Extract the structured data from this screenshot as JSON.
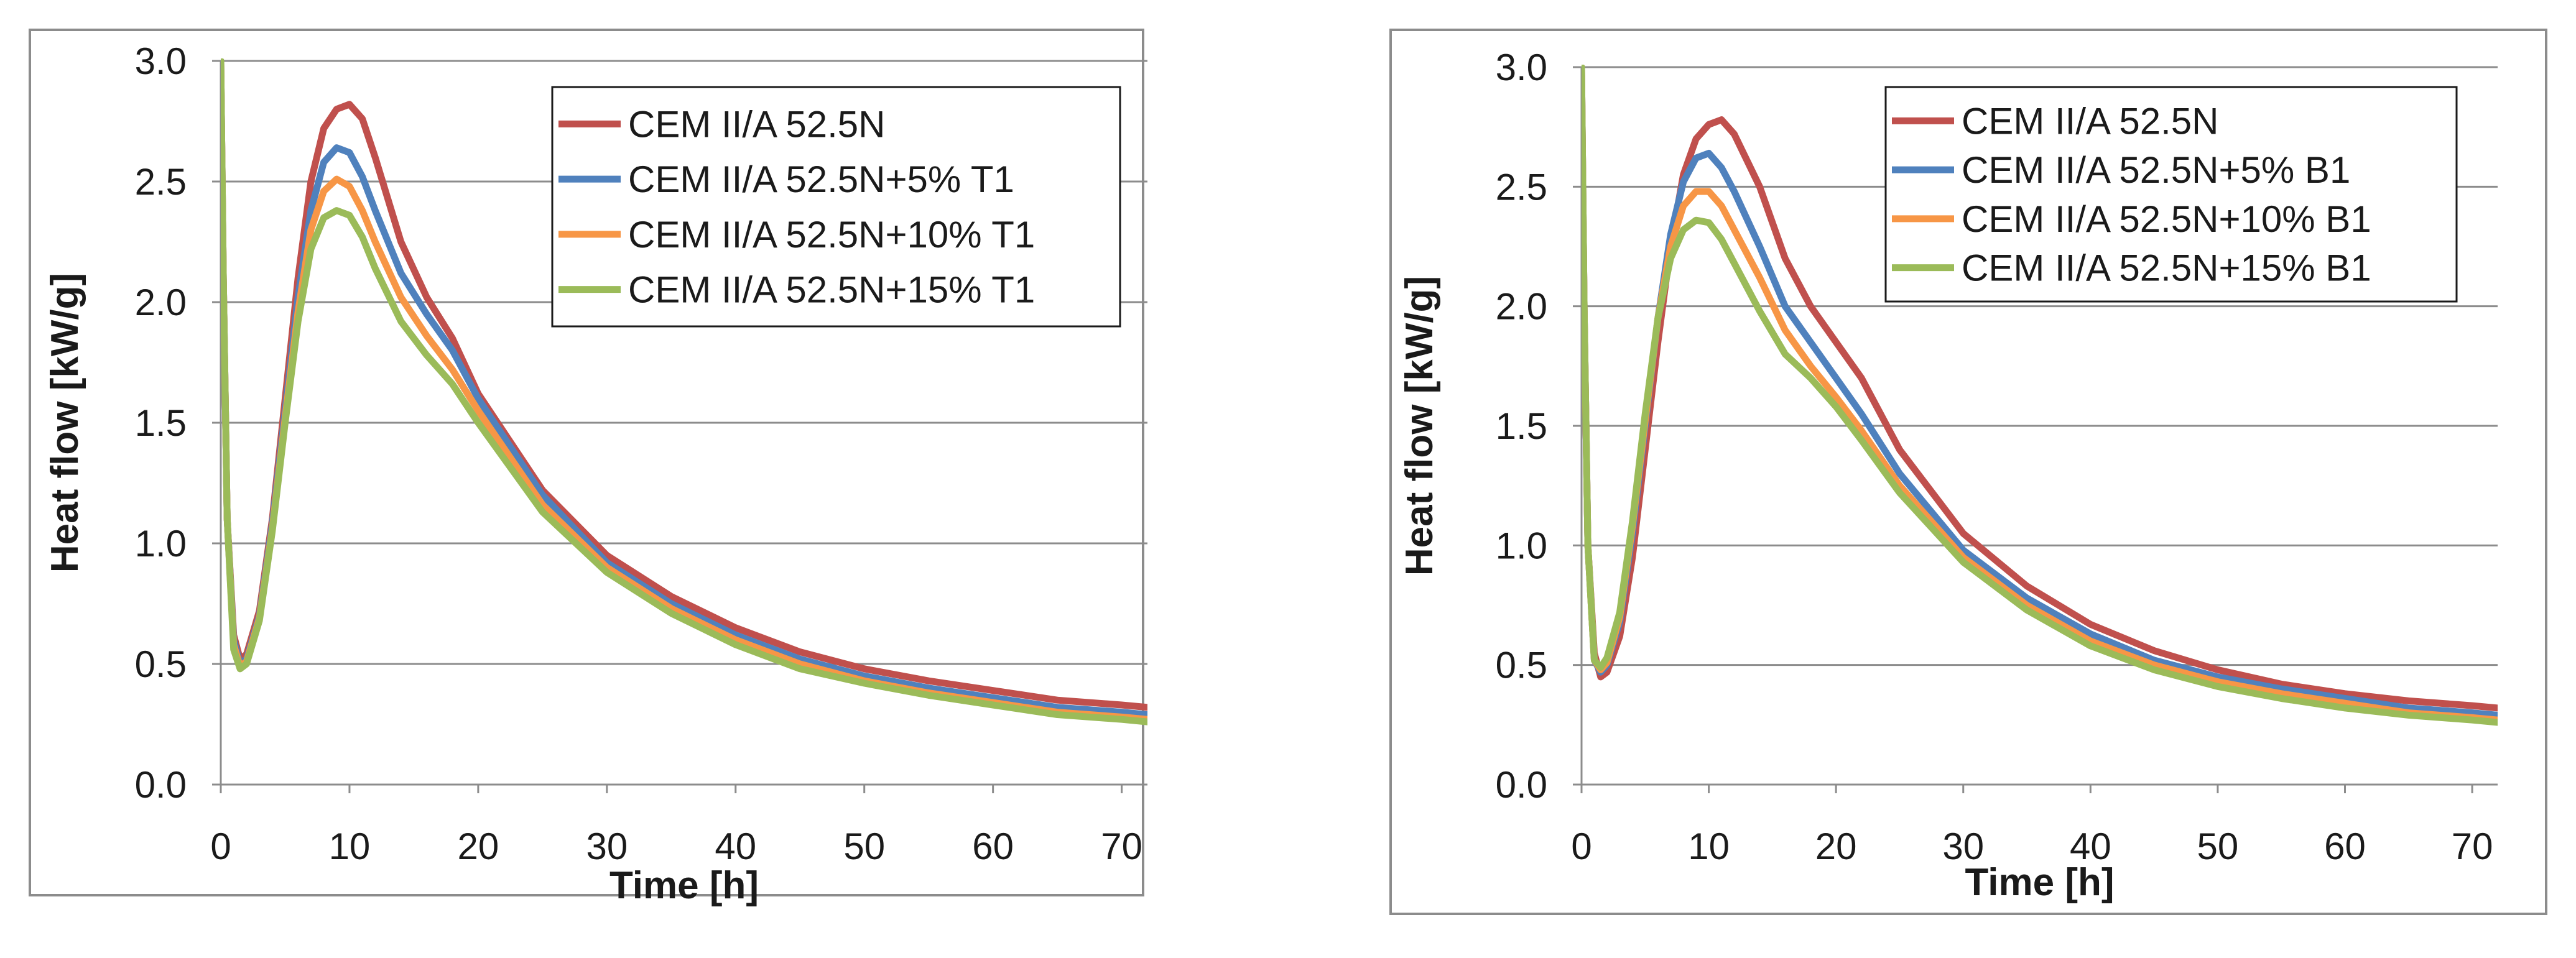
{
  "chart_data": [
    {
      "type": "line",
      "title": "",
      "xlabel": "Time [h]",
      "ylabel": "Heat flow [kW/g]",
      "xlim": [
        0,
        72
      ],
      "ylim": [
        0,
        3.0
      ],
      "xticks": [
        "0",
        "10",
        "20",
        "30",
        "40",
        "50",
        "60",
        "70"
      ],
      "yticks": [
        "0.0",
        "0.5",
        "1.0",
        "1.5",
        "2.0",
        "2.5",
        "3.0"
      ],
      "grid": "horizontal",
      "legend_position": "top-right",
      "series": [
        {
          "name": "CEM II/A 52.5N",
          "color": "#c0504d",
          "x": [
            0,
            0.2,
            0.5,
            1,
            1.5,
            2,
            3,
            4,
            5,
            6,
            7,
            8,
            9,
            10,
            11,
            12,
            14,
            16,
            18,
            20,
            25,
            30,
            35,
            40,
            45,
            50,
            55,
            60,
            65,
            70,
            72
          ],
          "y": [
            3.0,
            2.1,
            1.1,
            0.62,
            0.52,
            0.54,
            0.72,
            1.1,
            1.6,
            2.1,
            2.5,
            2.72,
            2.8,
            2.82,
            2.76,
            2.6,
            2.25,
            2.02,
            1.85,
            1.62,
            1.22,
            0.95,
            0.78,
            0.65,
            0.55,
            0.48,
            0.43,
            0.39,
            0.35,
            0.33,
            0.32
          ]
        },
        {
          "name": "CEM II/A 52.5N+5% T1",
          "color": "#4f81bd",
          "x": [
            0,
            0.2,
            0.5,
            1,
            1.5,
            2,
            3,
            4,
            5,
            6,
            7,
            8,
            9,
            10,
            11,
            12,
            14,
            16,
            18,
            20,
            25,
            30,
            35,
            40,
            45,
            50,
            55,
            60,
            65,
            70,
            72
          ],
          "y": [
            3.0,
            2.1,
            1.1,
            0.6,
            0.5,
            0.52,
            0.7,
            1.08,
            1.55,
            2.02,
            2.38,
            2.58,
            2.64,
            2.62,
            2.52,
            2.38,
            2.12,
            1.95,
            1.8,
            1.6,
            1.2,
            0.92,
            0.75,
            0.62,
            0.52,
            0.45,
            0.4,
            0.36,
            0.32,
            0.3,
            0.29
          ]
        },
        {
          "name": "CEM II/A 52.5N+10% T1",
          "color": "#f79646",
          "x": [
            0,
            0.2,
            0.5,
            1,
            1.5,
            2,
            3,
            4,
            5,
            6,
            7,
            8,
            9,
            10,
            11,
            12,
            14,
            16,
            18,
            20,
            25,
            30,
            35,
            40,
            45,
            50,
            55,
            60,
            65,
            70,
            72
          ],
          "y": [
            3.0,
            2.1,
            1.1,
            0.58,
            0.49,
            0.51,
            0.69,
            1.06,
            1.52,
            1.96,
            2.3,
            2.46,
            2.51,
            2.48,
            2.38,
            2.25,
            2.02,
            1.86,
            1.72,
            1.55,
            1.16,
            0.9,
            0.73,
            0.6,
            0.5,
            0.43,
            0.38,
            0.34,
            0.3,
            0.28,
            0.27
          ]
        },
        {
          "name": "CEM II/A 52.5N+15% T1",
          "color": "#9bbb59",
          "x": [
            0,
            0.2,
            0.5,
            1,
            1.5,
            2,
            3,
            4,
            5,
            6,
            7,
            8,
            9,
            10,
            11,
            12,
            14,
            16,
            18,
            20,
            25,
            30,
            35,
            40,
            45,
            50,
            55,
            60,
            65,
            70,
            72
          ],
          "y": [
            3.0,
            2.1,
            1.1,
            0.56,
            0.48,
            0.5,
            0.68,
            1.05,
            1.5,
            1.92,
            2.22,
            2.35,
            2.38,
            2.36,
            2.27,
            2.14,
            1.92,
            1.78,
            1.66,
            1.5,
            1.13,
            0.88,
            0.71,
            0.58,
            0.48,
            0.42,
            0.37,
            0.33,
            0.29,
            0.27,
            0.26
          ]
        }
      ]
    },
    {
      "type": "line",
      "title": "",
      "xlabel": "Time [h]",
      "ylabel": "Heat flow [kW/g]",
      "xlim": [
        0,
        72
      ],
      "ylim": [
        0,
        3.0
      ],
      "xticks": [
        "0",
        "10",
        "20",
        "30",
        "40",
        "50",
        "60",
        "70"
      ],
      "yticks": [
        "0.0",
        "0.5",
        "1.0",
        "1.5",
        "2.0",
        "2.5",
        "3.0"
      ],
      "grid": "horizontal",
      "legend_position": "top-right",
      "series": [
        {
          "name": "CEM II/A 52.5N",
          "color": "#c0504d",
          "x": [
            0,
            0.2,
            0.5,
            1,
            1.5,
            2,
            3,
            4,
            5,
            6,
            7,
            8,
            9,
            10,
            11,
            12,
            14,
            16,
            18,
            20,
            22,
            25,
            30,
            35,
            40,
            45,
            50,
            55,
            60,
            65,
            70,
            72
          ],
          "y": [
            3.0,
            2.0,
            1.0,
            0.55,
            0.45,
            0.47,
            0.62,
            0.95,
            1.4,
            1.85,
            2.25,
            2.55,
            2.7,
            2.76,
            2.78,
            2.72,
            2.5,
            2.2,
            2.0,
            1.85,
            1.7,
            1.4,
            1.05,
            0.83,
            0.67,
            0.56,
            0.48,
            0.42,
            0.38,
            0.35,
            0.33,
            0.32
          ]
        },
        {
          "name": "CEM II/A 52.5N+5% B1",
          "color": "#4f81bd",
          "x": [
            0,
            0.2,
            0.5,
            1,
            1.5,
            2,
            3,
            4,
            5,
            6,
            7,
            8,
            9,
            10,
            11,
            12,
            14,
            16,
            18,
            20,
            22,
            25,
            30,
            35,
            40,
            45,
            50,
            55,
            60,
            65,
            70,
            72
          ],
          "y": [
            3.0,
            2.0,
            1.0,
            0.52,
            0.47,
            0.5,
            0.68,
            1.05,
            1.5,
            1.95,
            2.3,
            2.52,
            2.62,
            2.64,
            2.58,
            2.48,
            2.25,
            2.0,
            1.85,
            1.7,
            1.55,
            1.3,
            0.98,
            0.78,
            0.63,
            0.52,
            0.45,
            0.4,
            0.36,
            0.32,
            0.3,
            0.29
          ]
        },
        {
          "name": "CEM II/A 52.5N+10% B1",
          "color": "#f79646",
          "x": [
            0,
            0.2,
            0.5,
            1,
            1.5,
            2,
            3,
            4,
            5,
            6,
            7,
            8,
            9,
            10,
            11,
            12,
            14,
            16,
            18,
            20,
            22,
            25,
            30,
            35,
            40,
            45,
            50,
            55,
            60,
            65,
            70,
            72
          ],
          "y": [
            3.0,
            2.0,
            1.0,
            0.52,
            0.48,
            0.51,
            0.7,
            1.08,
            1.52,
            1.95,
            2.25,
            2.42,
            2.48,
            2.48,
            2.42,
            2.32,
            2.12,
            1.9,
            1.75,
            1.62,
            1.48,
            1.25,
            0.95,
            0.75,
            0.6,
            0.5,
            0.43,
            0.38,
            0.34,
            0.3,
            0.28,
            0.27
          ]
        },
        {
          "name": "CEM II/A 52.5N+15% B1",
          "color": "#9bbb59",
          "x": [
            0,
            0.2,
            0.5,
            1,
            1.5,
            2,
            3,
            4,
            5,
            6,
            7,
            8,
            9,
            10,
            11,
            12,
            14,
            16,
            18,
            20,
            22,
            25,
            30,
            35,
            40,
            45,
            50,
            55,
            60,
            65,
            70,
            72
          ],
          "y": [
            3.0,
            2.0,
            1.0,
            0.52,
            0.49,
            0.53,
            0.72,
            1.1,
            1.55,
            1.95,
            2.2,
            2.32,
            2.36,
            2.35,
            2.28,
            2.18,
            1.98,
            1.8,
            1.7,
            1.58,
            1.44,
            1.22,
            0.93,
            0.73,
            0.58,
            0.48,
            0.41,
            0.36,
            0.32,
            0.29,
            0.27,
            0.26
          ]
        }
      ]
    }
  ]
}
